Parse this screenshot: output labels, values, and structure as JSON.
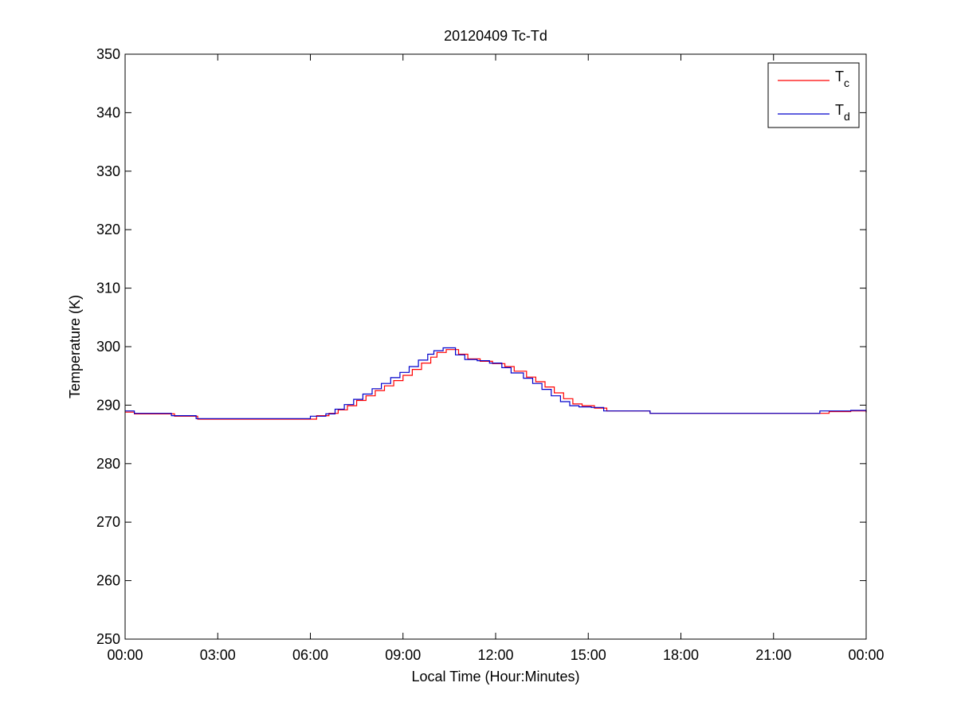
{
  "chart_data": {
    "type": "line",
    "title": "20120409 Tc-Td",
    "xlabel": "Local Time (Hour:Minutes)",
    "ylabel": "Temperature (K)",
    "xlim": [
      0,
      24
    ],
    "ylim": [
      250,
      350
    ],
    "x_ticks": [
      {
        "value": 0,
        "label": "00:00"
      },
      {
        "value": 3,
        "label": "03:00"
      },
      {
        "value": 6,
        "label": "06:00"
      },
      {
        "value": 9,
        "label": "09:00"
      },
      {
        "value": 12,
        "label": "12:00"
      },
      {
        "value": 15,
        "label": "15:00"
      },
      {
        "value": 18,
        "label": "18:00"
      },
      {
        "value": 21,
        "label": "21:00"
      },
      {
        "value": 24,
        "label": "00:00"
      }
    ],
    "y_ticks": [
      250,
      260,
      270,
      280,
      290,
      300,
      310,
      320,
      330,
      340,
      350
    ],
    "grid": false,
    "legend_position": "top-right",
    "series": [
      {
        "name": "Tc",
        "legend_base": "T",
        "legend_sub": "c",
        "color": "#ff0000",
        "x": [
          0,
          0.3,
          1.6,
          2.35,
          3.0,
          5.4,
          6.2,
          6.6,
          6.9,
          7.2,
          7.5,
          7.8,
          8.1,
          8.4,
          8.7,
          9.0,
          9.3,
          9.6,
          9.9,
          10.1,
          10.4,
          10.8,
          11.1,
          11.5,
          11.9,
          12.3,
          12.6,
          13.0,
          13.3,
          13.6,
          13.9,
          14.2,
          14.5,
          14.8,
          15.2,
          15.6,
          16.0,
          17.0,
          21.5,
          22.8,
          23.5,
          24.0
        ],
        "y": [
          288.8,
          288.5,
          288.1,
          287.6,
          287.6,
          287.6,
          288.2,
          288.6,
          289.2,
          289.9,
          290.8,
          291.6,
          292.5,
          293.3,
          294.2,
          295.1,
          296.1,
          297.2,
          298.2,
          299.0,
          299.5,
          298.7,
          297.9,
          297.5,
          297.1,
          296.6,
          295.8,
          294.8,
          294.0,
          293.1,
          292.1,
          291.1,
          290.2,
          289.9,
          289.5,
          289.0,
          289.0,
          288.6,
          288.6,
          288.9,
          289.0,
          288.7
        ]
      },
      {
        "name": "Td",
        "legend_base": "T",
        "legend_sub": "d",
        "color": "#0000cc",
        "x": [
          0,
          0.3,
          1.5,
          2.3,
          3.0,
          5.3,
          6.0,
          6.5,
          6.8,
          7.1,
          7.4,
          7.7,
          8.0,
          8.3,
          8.6,
          8.9,
          9.2,
          9.5,
          9.8,
          10.0,
          10.3,
          10.7,
          11.0,
          11.4,
          11.8,
          12.2,
          12.5,
          12.9,
          13.2,
          13.5,
          13.8,
          14.1,
          14.4,
          14.7,
          15.1,
          15.5,
          16.0,
          17.0,
          21.3,
          22.5,
          23.5,
          24.0
        ],
        "y": [
          289.0,
          288.6,
          288.2,
          287.7,
          287.7,
          287.7,
          288.1,
          288.5,
          289.3,
          290.1,
          291.0,
          291.9,
          292.8,
          293.7,
          294.7,
          295.6,
          296.6,
          297.7,
          298.7,
          299.3,
          299.8,
          298.6,
          297.8,
          297.6,
          297.2,
          296.4,
          295.5,
          294.6,
          293.7,
          292.7,
          291.6,
          290.6,
          289.9,
          289.7,
          289.6,
          289.0,
          289.0,
          288.6,
          288.6,
          289.0,
          289.1,
          288.8
        ]
      }
    ]
  }
}
